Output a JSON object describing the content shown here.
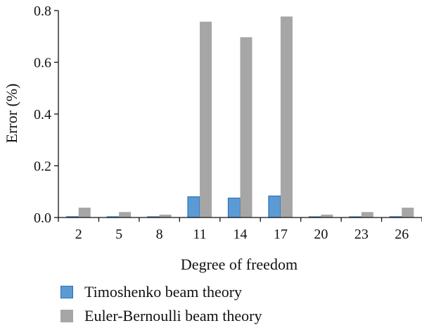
{
  "chart_data": {
    "type": "bar",
    "title": "",
    "xlabel": "Degree of freedom",
    "ylabel": "Error (%)",
    "ylim": [
      0,
      0.8
    ],
    "yticks": [
      "0.0",
      "0.2",
      "0.4",
      "0.6",
      "0.8"
    ],
    "categories": [
      "2",
      "5",
      "8",
      "11",
      "14",
      "17",
      "20",
      "23",
      "26"
    ],
    "series": [
      {
        "name": "Timoshenko beam theory",
        "color": "#5b9bd5",
        "edge": "#2e6fb5",
        "values": [
          0.003,
          0.001,
          0.001,
          0.08,
          0.075,
          0.083,
          0.001,
          0.001,
          0.003
        ]
      },
      {
        "name": "Euler-Bernoulli beam theory",
        "color": "#a6a6a6",
        "edge": "#a6a6a6",
        "values": [
          0.038,
          0.021,
          0.011,
          0.757,
          0.697,
          0.777,
          0.011,
          0.021,
          0.038
        ]
      }
    ],
    "grid": false,
    "legend_position": "bottom"
  }
}
